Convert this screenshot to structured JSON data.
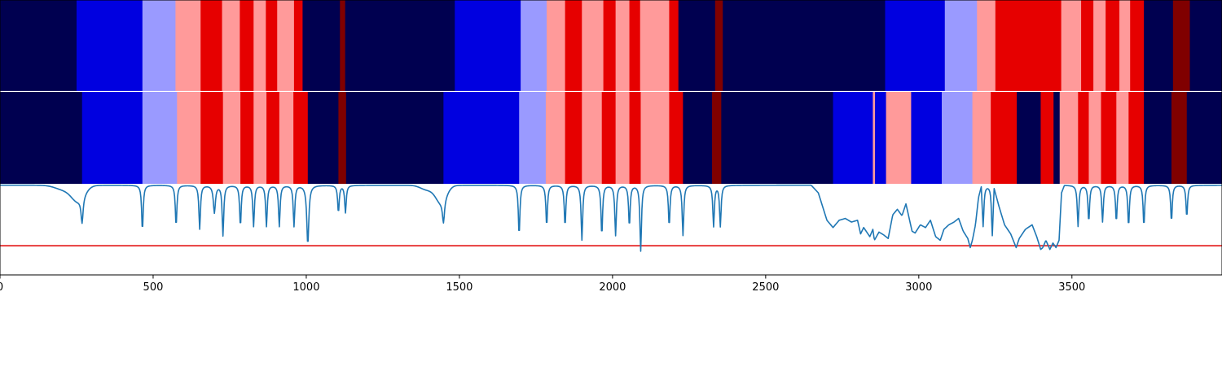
{
  "chart_data": {
    "type": "heatmap",
    "title": "",
    "xlabel": "",
    "ylabel": "",
    "xlim": [
      0,
      3990
    ],
    "xticks": [
      0,
      500,
      1000,
      1500,
      2000,
      2500,
      3000,
      3500
    ],
    "xtick_labels": [
      "0",
      "500",
      "1000",
      "1500",
      "2000",
      "2500",
      "3000",
      "3500"
    ],
    "grid": false,
    "palette": {
      "navy": "#000050",
      "blue": "#0000e0",
      "lightblue": "#9a9aff",
      "pink": "#ff9a9a",
      "red": "#e60000",
      "darkred": "#800000"
    },
    "bands": [
      {
        "name": "row-1",
        "segments": [
          [
            0,
            250,
            "navy"
          ],
          [
            250,
            465,
            "blue"
          ],
          [
            465,
            573,
            "lightblue"
          ],
          [
            573,
            655,
            "pink"
          ],
          [
            655,
            725,
            "red"
          ],
          [
            725,
            783,
            "pink"
          ],
          [
            783,
            828,
            "red"
          ],
          [
            828,
            868,
            "pink"
          ],
          [
            868,
            905,
            "red"
          ],
          [
            905,
            960,
            "pink"
          ],
          [
            960,
            988,
            "red"
          ],
          [
            988,
            1110,
            "navy"
          ],
          [
            1110,
            1127,
            "darkred"
          ],
          [
            1127,
            1485,
            "navy"
          ],
          [
            1485,
            1700,
            "blue"
          ],
          [
            1700,
            1785,
            "lightblue"
          ],
          [
            1785,
            1845,
            "pink"
          ],
          [
            1845,
            1900,
            "red"
          ],
          [
            1900,
            1970,
            "pink"
          ],
          [
            1970,
            2010,
            "red"
          ],
          [
            2010,
            2055,
            "pink"
          ],
          [
            2055,
            2090,
            "red"
          ],
          [
            2090,
            2185,
            "pink"
          ],
          [
            2185,
            2215,
            "red"
          ],
          [
            2215,
            2335,
            "navy"
          ],
          [
            2335,
            2360,
            "darkred"
          ],
          [
            2360,
            2890,
            "navy"
          ],
          [
            2890,
            3085,
            "blue"
          ],
          [
            3085,
            3190,
            "lightblue"
          ],
          [
            3190,
            3250,
            "pink"
          ],
          [
            3250,
            3465,
            "red"
          ],
          [
            3465,
            3530,
            "pink"
          ],
          [
            3530,
            3570,
            "red"
          ],
          [
            3570,
            3610,
            "pink"
          ],
          [
            3610,
            3655,
            "red"
          ],
          [
            3655,
            3690,
            "pink"
          ],
          [
            3690,
            3735,
            "red"
          ],
          [
            3735,
            3830,
            "navy"
          ],
          [
            3830,
            3885,
            "darkred"
          ],
          [
            3885,
            3990,
            "navy"
          ]
        ]
      },
      {
        "name": "row-2",
        "segments": [
          [
            0,
            268,
            "navy"
          ],
          [
            268,
            465,
            "blue"
          ],
          [
            465,
            578,
            "lightblue"
          ],
          [
            578,
            655,
            "pink"
          ],
          [
            655,
            728,
            "red"
          ],
          [
            728,
            785,
            "pink"
          ],
          [
            785,
            828,
            "red"
          ],
          [
            828,
            870,
            "pink"
          ],
          [
            870,
            912,
            "red"
          ],
          [
            912,
            958,
            "pink"
          ],
          [
            958,
            1005,
            "red"
          ],
          [
            1005,
            1105,
            "navy"
          ],
          [
            1105,
            1130,
            "darkred"
          ],
          [
            1130,
            1448,
            "navy"
          ],
          [
            1448,
            1695,
            "blue"
          ],
          [
            1695,
            1782,
            "lightblue"
          ],
          [
            1782,
            1845,
            "pink"
          ],
          [
            1845,
            1900,
            "red"
          ],
          [
            1900,
            1965,
            "pink"
          ],
          [
            1965,
            2010,
            "red"
          ],
          [
            2010,
            2055,
            "pink"
          ],
          [
            2055,
            2092,
            "red"
          ],
          [
            2092,
            2185,
            "pink"
          ],
          [
            2185,
            2230,
            "red"
          ],
          [
            2230,
            2325,
            "navy"
          ],
          [
            2325,
            2355,
            "darkred"
          ],
          [
            2355,
            2720,
            "navy"
          ],
          [
            2720,
            2850,
            "blue"
          ],
          [
            2850,
            2857,
            "pink"
          ],
          [
            2857,
            2893,
            "blue"
          ],
          [
            2893,
            2975,
            "pink"
          ],
          [
            2975,
            3075,
            "blue"
          ],
          [
            3075,
            3175,
            "lightblue"
          ],
          [
            3175,
            3235,
            "pink"
          ],
          [
            3235,
            3320,
            "red"
          ],
          [
            3320,
            3398,
            "navy"
          ],
          [
            3398,
            3440,
            "red"
          ],
          [
            3440,
            3460,
            "navy"
          ],
          [
            3460,
            3520,
            "pink"
          ],
          [
            3520,
            3555,
            "red"
          ],
          [
            3555,
            3595,
            "pink"
          ],
          [
            3595,
            3645,
            "red"
          ],
          [
            3645,
            3685,
            "pink"
          ],
          [
            3685,
            3735,
            "red"
          ],
          [
            3735,
            3825,
            "navy"
          ],
          [
            3825,
            3875,
            "darkred"
          ],
          [
            3875,
            3990,
            "navy"
          ]
        ]
      }
    ],
    "spectrum": {
      "color": "#1f77b4",
      "ylim": [
        0,
        1
      ],
      "threshold": 0.32,
      "threshold_color": "#e00000",
      "baseline": 0.985,
      "broad": [
        {
          "center": 255,
          "depth": 0.16,
          "width": 30
        },
        {
          "center": 210,
          "depth": 0.05,
          "width": 40
        },
        {
          "center": 1440,
          "depth": 0.18,
          "width": 25
        },
        {
          "center": 1395,
          "depth": 0.05,
          "width": 30
        }
      ],
      "peaks": [
        {
          "center": 268,
          "depth": 0.28,
          "width": 4
        },
        {
          "center": 465,
          "depth": 0.5,
          "width": 3
        },
        {
          "center": 575,
          "depth": 0.45,
          "width": 3
        },
        {
          "center": 652,
          "depth": 0.48,
          "width": 3
        },
        {
          "center": 700,
          "depth": 0.3,
          "width": 4
        },
        {
          "center": 728,
          "depth": 0.55,
          "width": 3
        },
        {
          "center": 785,
          "depth": 0.45,
          "width": 3
        },
        {
          "center": 828,
          "depth": 0.45,
          "width": 3
        },
        {
          "center": 870,
          "depth": 0.45,
          "width": 3
        },
        {
          "center": 912,
          "depth": 0.45,
          "width": 3
        },
        {
          "center": 960,
          "depth": 0.45,
          "width": 3
        },
        {
          "center": 1005,
          "depth": 0.65,
          "width": 4
        },
        {
          "center": 1105,
          "depth": 0.3,
          "width": 3
        },
        {
          "center": 1128,
          "depth": 0.3,
          "width": 3
        },
        {
          "center": 1448,
          "depth": 0.25,
          "width": 4
        },
        {
          "center": 1695,
          "depth": 0.55,
          "width": 3
        },
        {
          "center": 1785,
          "depth": 0.45,
          "width": 3
        },
        {
          "center": 1845,
          "depth": 0.45,
          "width": 3
        },
        {
          "center": 1900,
          "depth": 0.6,
          "width": 3
        },
        {
          "center": 1965,
          "depth": 0.55,
          "width": 3
        },
        {
          "center": 2010,
          "depth": 0.55,
          "width": 3
        },
        {
          "center": 2055,
          "depth": 0.45,
          "width": 3
        },
        {
          "center": 2092,
          "depth": 0.72,
          "width": 3
        },
        {
          "center": 2185,
          "depth": 0.45,
          "width": 3
        },
        {
          "center": 2230,
          "depth": 0.55,
          "width": 3
        },
        {
          "center": 2330,
          "depth": 0.45,
          "width": 3
        },
        {
          "center": 2352,
          "depth": 0.45,
          "width": 3
        },
        {
          "center": 3210,
          "depth": 0.45,
          "width": 3
        },
        {
          "center": 3240,
          "depth": 0.55,
          "width": 3
        },
        {
          "center": 3520,
          "depth": 0.45,
          "width": 3
        },
        {
          "center": 3555,
          "depth": 0.4,
          "width": 3
        },
        {
          "center": 3600,
          "depth": 0.4,
          "width": 3
        },
        {
          "center": 3645,
          "depth": 0.4,
          "width": 3
        },
        {
          "center": 3685,
          "depth": 0.45,
          "width": 3
        },
        {
          "center": 3735,
          "depth": 0.45,
          "width": 3
        },
        {
          "center": 3825,
          "depth": 0.4,
          "width": 3
        },
        {
          "center": 3875,
          "depth": 0.35,
          "width": 3
        }
      ],
      "regions": [
        {
          "points": [
            [
              2650,
              0.98
            ],
            [
              2672,
              0.9
            ],
            [
              2700,
              0.6
            ],
            [
              2720,
              0.52
            ],
            [
              2740,
              0.6
            ],
            [
              2760,
              0.62
            ],
            [
              2780,
              0.58
            ],
            [
              2800,
              0.6
            ],
            [
              2810,
              0.45
            ],
            [
              2820,
              0.52
            ],
            [
              2840,
              0.42
            ],
            [
              2850,
              0.5
            ],
            [
              2855,
              0.38
            ],
            [
              2870,
              0.47
            ],
            [
              2885,
              0.44
            ],
            [
              2900,
              0.4
            ],
            [
              2915,
              0.66
            ],
            [
              2930,
              0.72
            ],
            [
              2945,
              0.65
            ],
            [
              2958,
              0.78
            ],
            [
              2970,
              0.6
            ],
            [
              2978,
              0.48
            ],
            [
              2988,
              0.46
            ],
            [
              3005,
              0.55
            ],
            [
              3022,
              0.52
            ],
            [
              3038,
              0.6
            ],
            [
              3055,
              0.42
            ],
            [
              3070,
              0.38
            ],
            [
              3082,
              0.5
            ],
            [
              3098,
              0.55
            ],
            [
              3115,
              0.58
            ],
            [
              3130,
              0.62
            ],
            [
              3145,
              0.48
            ],
            [
              3160,
              0.4
            ],
            [
              3168,
              0.3
            ],
            [
              3175,
              0.38
            ],
            [
              3185,
              0.55
            ],
            [
              3195,
              0.85
            ],
            [
              3205,
              0.98
            ]
          ]
        },
        {
          "points": [
            [
              3245,
              0.96
            ],
            [
              3262,
              0.75
            ],
            [
              3280,
              0.55
            ],
            [
              3300,
              0.45
            ],
            [
              3318,
              0.3
            ],
            [
              3328,
              0.4
            ],
            [
              3348,
              0.5
            ],
            [
              3370,
              0.55
            ],
            [
              3385,
              0.42
            ],
            [
              3398,
              0.28
            ],
            [
              3405,
              0.3
            ],
            [
              3415,
              0.38
            ],
            [
              3428,
              0.28
            ],
            [
              3438,
              0.35
            ],
            [
              3448,
              0.3
            ],
            [
              3458,
              0.38
            ],
            [
              3466,
              0.9
            ],
            [
              3475,
              0.98
            ]
          ]
        }
      ]
    }
  }
}
